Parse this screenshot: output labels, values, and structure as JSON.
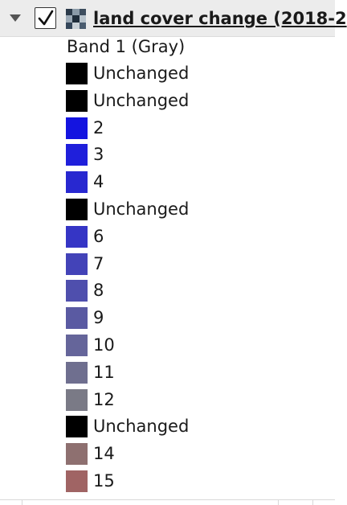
{
  "layer": {
    "name": "land cover change (2018-2",
    "checked": true,
    "expanded": true,
    "band": "Band 1 (Gray)"
  },
  "legend_items": [
    {
      "label": "Unchanged",
      "color": "#000000"
    },
    {
      "label": "Unchanged",
      "color": "#000000"
    },
    {
      "label": "2",
      "color": "#1414e0"
    },
    {
      "label": "3",
      "color": "#1f1fdb"
    },
    {
      "label": "4",
      "color": "#2828d0"
    },
    {
      "label": "Unchanged",
      "color": "#000000"
    },
    {
      "label": "6",
      "color": "#3535c5"
    },
    {
      "label": "7",
      "color": "#4343b8"
    },
    {
      "label": "8",
      "color": "#4f4fad"
    },
    {
      "label": "9",
      "color": "#5a5aa2"
    },
    {
      "label": "10",
      "color": "#65659a"
    },
    {
      "label": "11",
      "color": "#6f6f8f"
    },
    {
      "label": "12",
      "color": "#7a7a86"
    },
    {
      "label": "Unchanged",
      "color": "#000000"
    },
    {
      "label": "14",
      "color": "#8e7070"
    },
    {
      "label": "15",
      "color": "#a06464"
    }
  ],
  "icons": {
    "expander": "chevron-down-icon",
    "checkbox": "checkmark-icon",
    "layer_type": "raster-layer-icon"
  }
}
